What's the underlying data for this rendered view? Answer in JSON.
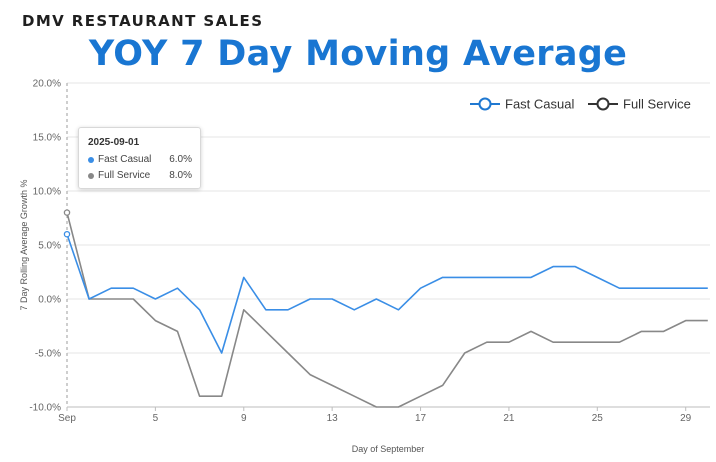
{
  "header": {
    "kicker": "DMV RESTAURANT SALES",
    "title": "YOY 7 Day Moving Average"
  },
  "tooltip": {
    "date": "2025-09-01",
    "rows": [
      {
        "name": "Fast Casual",
        "value": "6.0%",
        "color": "#3a8ee6"
      },
      {
        "name": "Full Service",
        "value": "8.0%",
        "color": "#888888"
      }
    ]
  },
  "chart_data": {
    "type": "line",
    "title": "",
    "xlabel": "Day of September",
    "ylabel": "7 Day Rolling Average Growth %",
    "x": [
      1,
      2,
      3,
      4,
      5,
      6,
      7,
      8,
      9,
      10,
      11,
      12,
      13,
      14,
      15,
      16,
      17,
      18,
      19,
      20,
      21,
      22,
      23,
      24,
      25,
      26,
      27,
      28,
      29,
      30
    ],
    "x_ticks": [
      {
        "x": 1,
        "label": "Sep"
      },
      {
        "x": 5,
        "label": "5"
      },
      {
        "x": 9,
        "label": "9"
      },
      {
        "x": 13,
        "label": "13"
      },
      {
        "x": 17,
        "label": "17"
      },
      {
        "x": 21,
        "label": "21"
      },
      {
        "x": 25,
        "label": "25"
      },
      {
        "x": 29,
        "label": "29"
      }
    ],
    "y_ticks": [
      {
        "y": 20,
        "label": "20.0%"
      },
      {
        "y": 15,
        "label": "15.0%"
      },
      {
        "y": 10,
        "label": "10.0%"
      },
      {
        "y": 5,
        "label": "5.0%"
      },
      {
        "y": 0,
        "label": "0.0%"
      },
      {
        "y": -5,
        "label": "-5.0%"
      },
      {
        "y": -10,
        "label": "-10.0%"
      }
    ],
    "xlim": [
      1,
      30.1
    ],
    "ylim": [
      -10,
      20
    ],
    "grid": true,
    "legend_position": "top-right",
    "hover_x": 1,
    "series": [
      {
        "name": "Fast Casual",
        "color": "#3a8ee6",
        "legend_color": "#1f78d1",
        "values": [
          6,
          0,
          1,
          1,
          0,
          1,
          -1,
          -5,
          2,
          -1,
          -1,
          0,
          0,
          -1,
          0,
          -1,
          1,
          2,
          2,
          2,
          2,
          2,
          3,
          3,
          2,
          1,
          1,
          1,
          1,
          1
        ]
      },
      {
        "name": "Full Service",
        "color": "#888888",
        "legend_color": "#333333",
        "values": [
          8,
          0,
          0,
          0,
          -2,
          -3,
          -9,
          -9,
          -1,
          -3,
          -5,
          -7,
          -8,
          -9,
          -10,
          -10,
          -9,
          -8,
          -5,
          -4,
          -4,
          -3,
          -4,
          -4,
          -4,
          -4,
          -3,
          -3,
          -2,
          -2
        ]
      }
    ]
  }
}
